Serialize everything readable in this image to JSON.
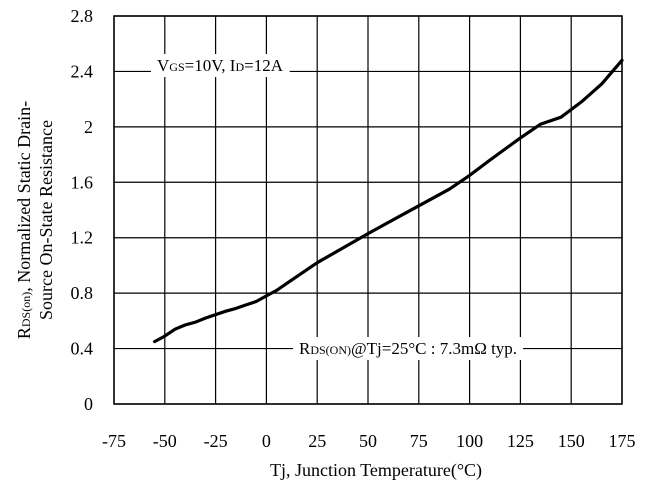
{
  "chart_data": {
    "type": "line",
    "title": "",
    "xlabel": "Tj, Junction Temperature(°C)",
    "ylabel": {
      "line1_main": "R",
      "line1_sub": "DS(on)",
      "line1_rest": ", Normalized Static Drain-",
      "line2": "Source On-State Resistance"
    },
    "xlim": [
      -75,
      175
    ],
    "ylim": [
      0,
      2.8
    ],
    "x_ticks": [
      "-75",
      "-50",
      "-25",
      "0",
      "25",
      "50",
      "75",
      "100",
      "125",
      "150",
      "175"
    ],
    "y_ticks": [
      "0",
      "0.4",
      "0.8",
      "1.2",
      "1.6",
      "2",
      "2.4",
      "2.8"
    ],
    "grid": true,
    "x": [
      -55,
      -50,
      -45,
      -40,
      -35,
      -30,
      -25,
      -20,
      -15,
      -10,
      -5,
      0,
      5,
      10,
      25,
      50,
      75,
      90,
      100,
      110,
      125,
      135,
      145,
      155,
      165,
      175
    ],
    "y": [
      0.45,
      0.49,
      0.54,
      0.57,
      0.59,
      0.62,
      0.645,
      0.67,
      0.69,
      0.715,
      0.74,
      0.78,
      0.82,
      0.87,
      1.02,
      1.23,
      1.43,
      1.55,
      1.65,
      1.76,
      1.92,
      2.02,
      2.07,
      2.18,
      2.31,
      2.48
    ],
    "annotations": {
      "conditions": {
        "v": "V",
        "v_sub": "GS",
        "v_rest": "=10V, I",
        "i_sub": "D",
        "i_rest": "=12A"
      },
      "rds": {
        "r": "R",
        "r_sub": "DS(ON)",
        "rest": "@Tj=25°C : 7.3mΩ  typ."
      }
    },
    "colors": {
      "line": "#000000",
      "grid": "#000000",
      "background": "#ffffff"
    }
  }
}
